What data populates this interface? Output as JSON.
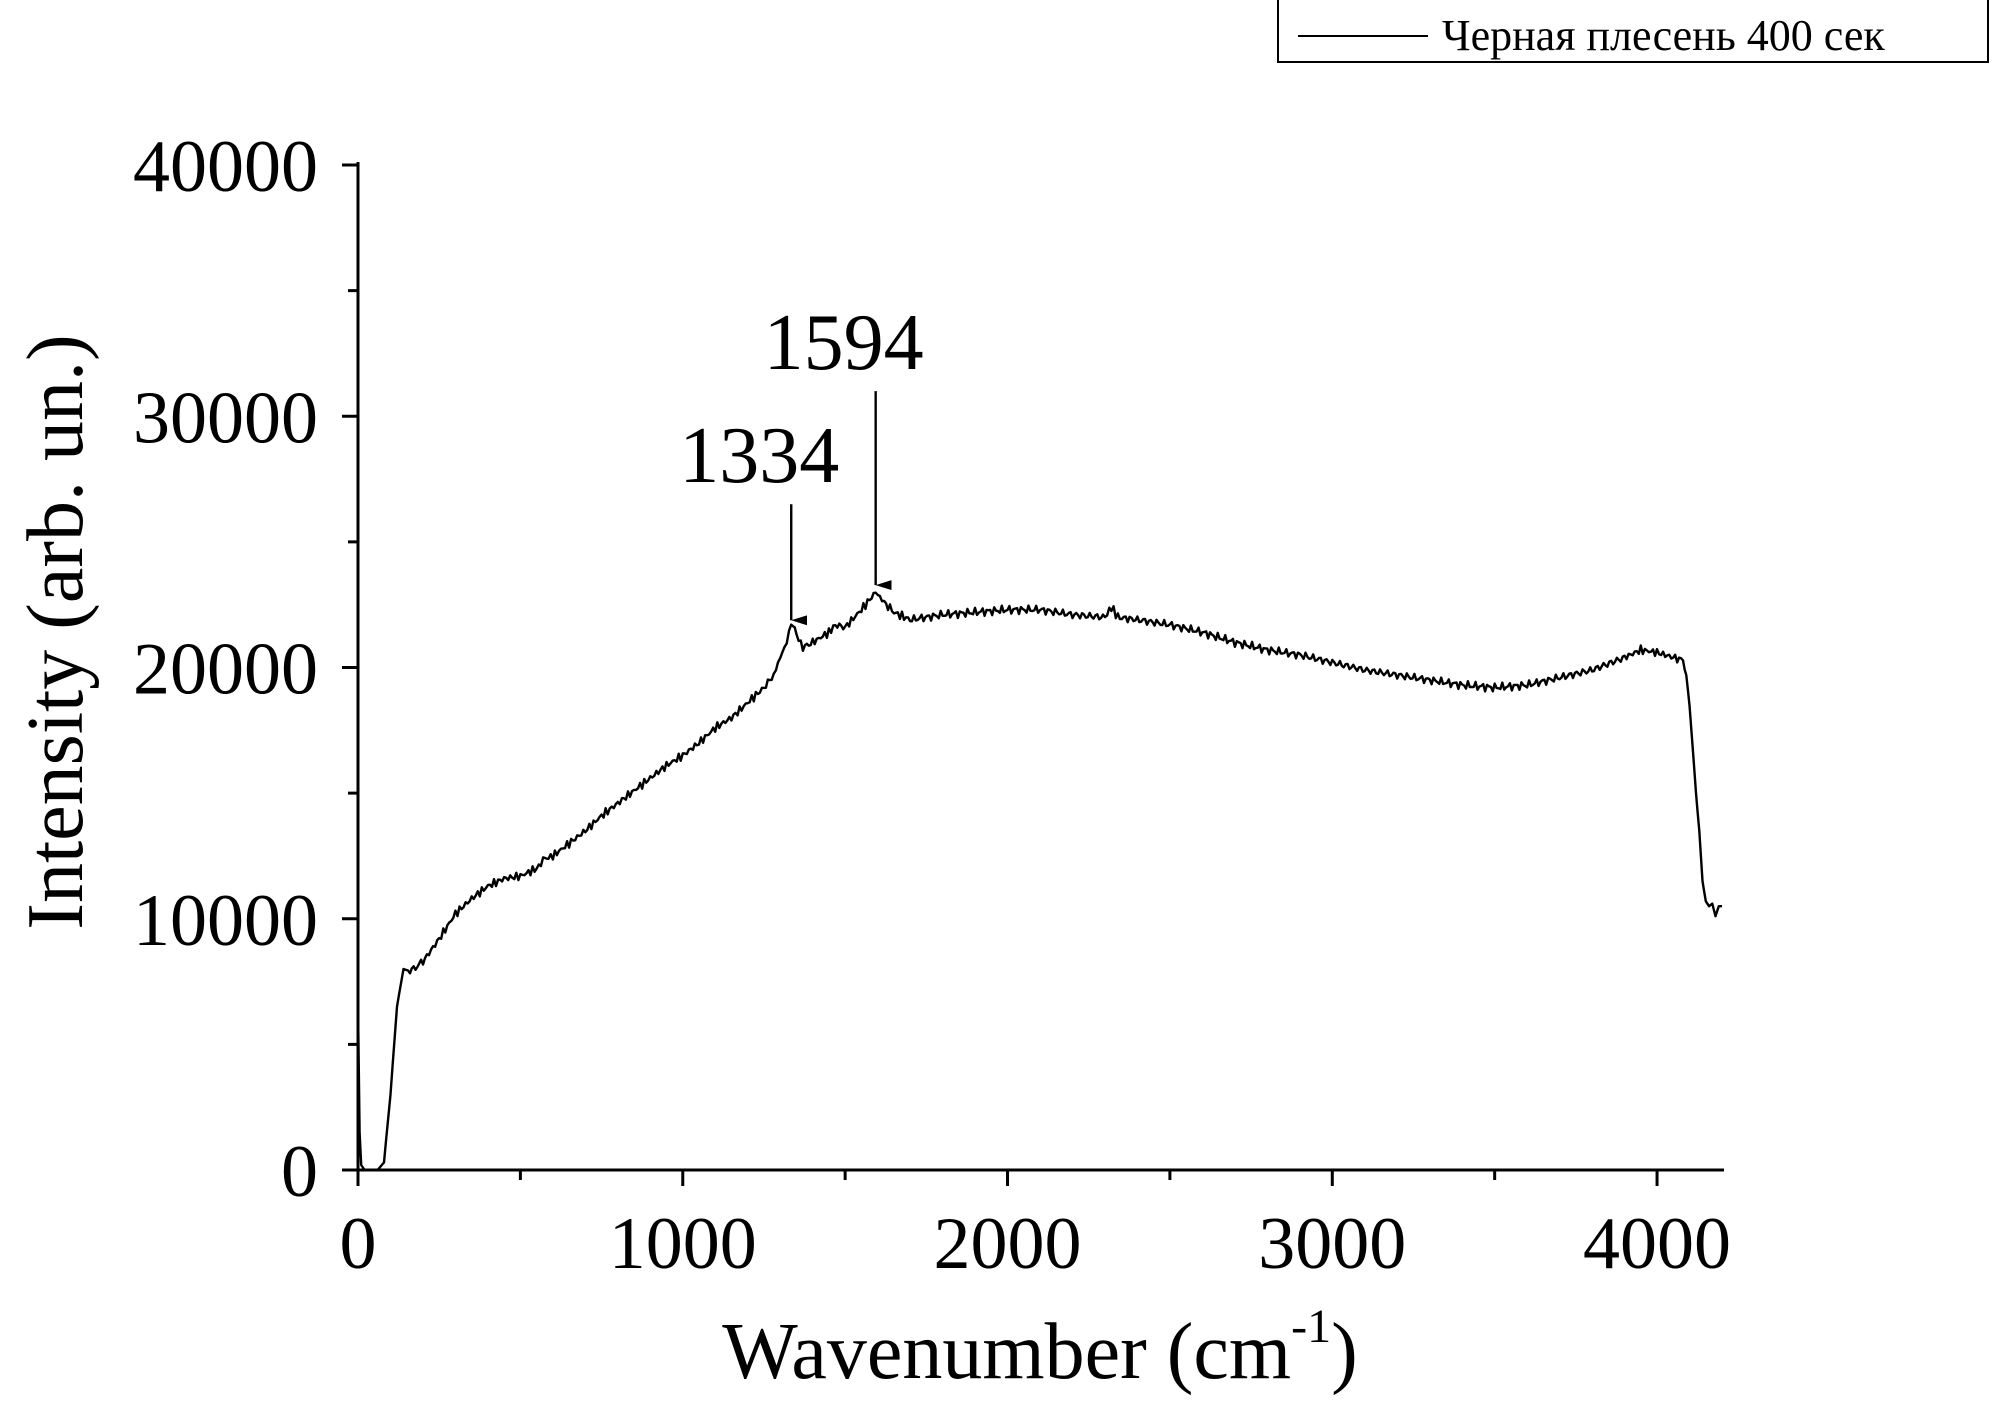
{
  "chart_data": {
    "type": "line",
    "xlabel_main": "Wavenumber (cm",
    "xlabel_sup": "-1",
    "xlabel_close": ")",
    "ylabel": "Intensity (arb. un.)",
    "xlim": [
      0,
      4200
    ],
    "ylim": [
      0,
      40000
    ],
    "x_ticks": [
      "0",
      "1000",
      "2000",
      "3000",
      "4000"
    ],
    "y_ticks": [
      "0",
      "10000",
      "20000",
      "30000",
      "40000"
    ],
    "x_tick_values": [
      0,
      1000,
      2000,
      3000,
      4000
    ],
    "y_tick_values": [
      0,
      10000,
      20000,
      30000,
      40000
    ],
    "x_minor_step": 500,
    "y_minor_step": 5000,
    "grid": false,
    "legend_position": "top-right",
    "colors": {
      "line": "#000000",
      "axes": "#000000"
    },
    "series": [
      {
        "name": "Черная плесень 400 сек",
        "x": [
          0,
          5,
          10,
          20,
          40,
          60,
          80,
          100,
          120,
          140,
          160,
          200,
          250,
          300,
          350,
          400,
          450,
          500,
          550,
          570,
          580,
          600,
          650,
          700,
          750,
          800,
          850,
          900,
          950,
          1000,
          1050,
          1100,
          1150,
          1200,
          1250,
          1280,
          1300,
          1320,
          1334,
          1350,
          1370,
          1400,
          1450,
          1470,
          1500,
          1550,
          1594,
          1620,
          1650,
          1700,
          1800,
          1900,
          2000,
          2100,
          2200,
          2300,
          2320,
          2340,
          2400,
          2500,
          2600,
          2700,
          2800,
          2900,
          3000,
          3100,
          3200,
          3300,
          3400,
          3500,
          3600,
          3700,
          3800,
          3900,
          3950,
          4000,
          4050,
          4080,
          4090,
          4100,
          4120,
          4130,
          4140,
          4150,
          4160,
          4170,
          4180,
          4190,
          4200
        ],
        "y": [
          6500,
          1500,
          200,
          0,
          0,
          0,
          300,
          3000,
          6500,
          8000,
          7900,
          8300,
          9200,
          10200,
          10800,
          11300,
          11600,
          11700,
          12000,
          12300,
          12400,
          12500,
          13000,
          13500,
          14100,
          14600,
          15100,
          15600,
          16100,
          16500,
          17000,
          17600,
          18000,
          18600,
          19200,
          19700,
          20400,
          21000,
          21800,
          21300,
          20800,
          21000,
          21400,
          21700,
          21600,
          22300,
          23000,
          22600,
          22200,
          21900,
          22100,
          22200,
          22300,
          22300,
          22100,
          22000,
          22400,
          22000,
          21900,
          21700,
          21400,
          21000,
          20700,
          20500,
          20200,
          19900,
          19700,
          19500,
          19300,
          19200,
          19300,
          19600,
          19900,
          20400,
          20700,
          20600,
          20400,
          20300,
          19800,
          18500,
          15000,
          13500,
          11500,
          10700,
          10500,
          10600,
          10100,
          10500,
          10500
        ]
      }
    ],
    "annotations": [
      {
        "label": "1334",
        "x": 1334,
        "y": 21800,
        "arrow_from_y": 26500
      },
      {
        "label": "1594",
        "x": 1594,
        "y": 23200,
        "arrow_from_y": 31000
      }
    ]
  }
}
